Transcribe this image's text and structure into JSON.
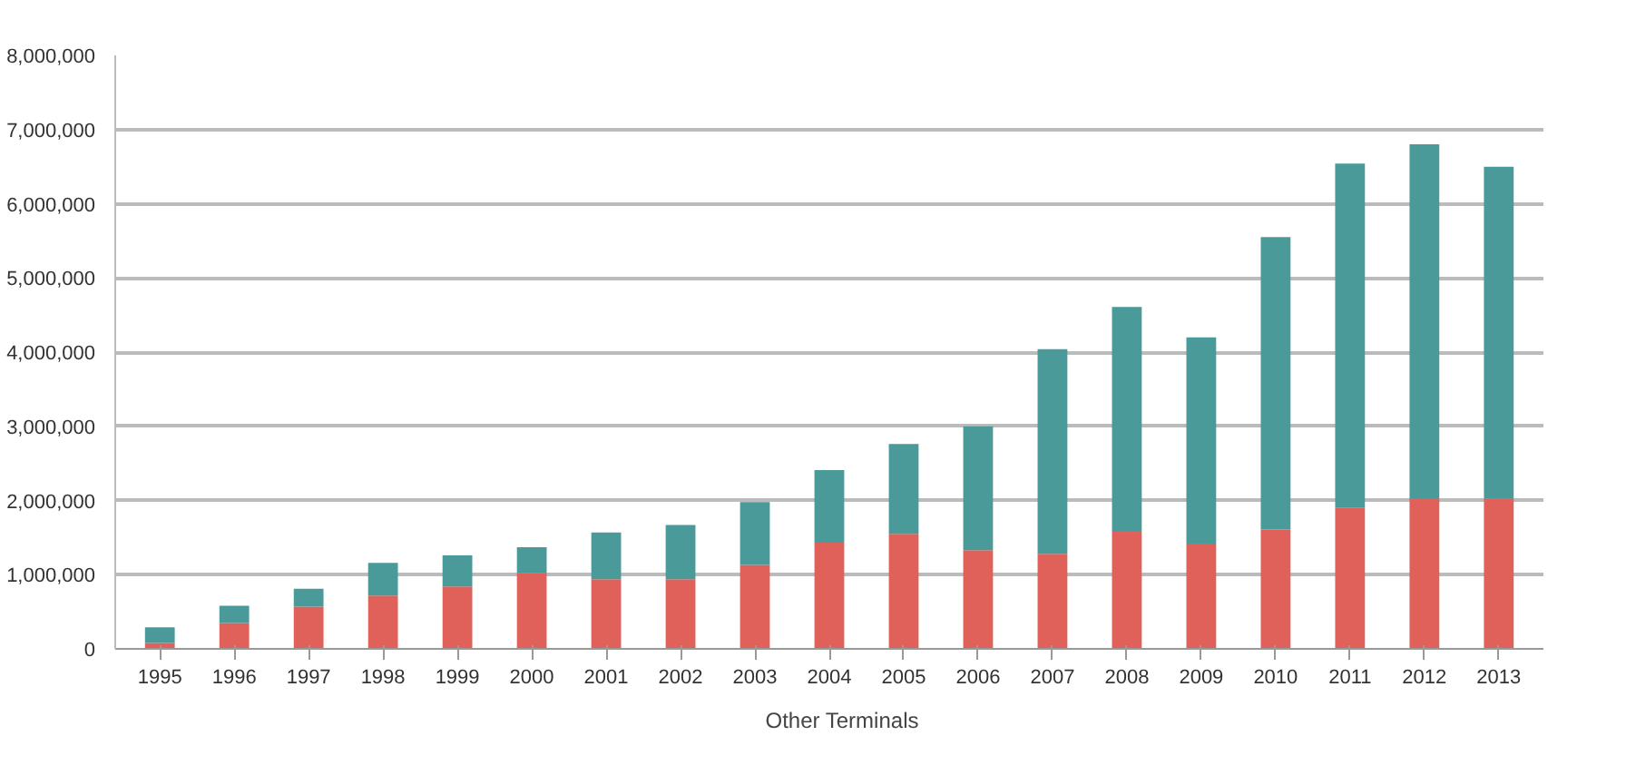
{
  "chart_data": {
    "type": "bar",
    "stacked": true,
    "categories": [
      "1995",
      "1996",
      "1997",
      "1998",
      "1999",
      "2000",
      "2001",
      "2002",
      "2003",
      "2004",
      "2005",
      "2006",
      "2007",
      "2008",
      "2009",
      "2010",
      "2011",
      "2012",
      "2013"
    ],
    "series": [
      {
        "color": "#e0605a",
        "values": [
          80000,
          350000,
          570000,
          720000,
          840000,
          1020000,
          940000,
          940000,
          1130000,
          1430000,
          1550000,
          1330000,
          1280000,
          1590000,
          1420000,
          1610000,
          1900000,
          2030000,
          2020000
        ]
      },
      {
        "name": "Other Terminals",
        "color": "#4a9a9a",
        "values": [
          210000,
          230000,
          240000,
          440000,
          420000,
          350000,
          630000,
          730000,
          850000,
          980000,
          1210000,
          1670000,
          2760000,
          3020000,
          2780000,
          3940000,
          4640000,
          4770000,
          4480000
        ]
      }
    ],
    "ylim": [
      0,
      8000000
    ],
    "yticks": [
      {
        "value": 0,
        "label": "0"
      },
      {
        "value": 1000000,
        "label": "1,000,000"
      },
      {
        "value": 2000000,
        "label": "2,000,000"
      },
      {
        "value": 3000000,
        "label": "3,000,000"
      },
      {
        "value": 4000000,
        "label": "4,000,000"
      },
      {
        "value": 5000000,
        "label": "5,000,000"
      },
      {
        "value": 6000000,
        "label": "6,000,000"
      },
      {
        "value": 7000000,
        "label": "7,000,000"
      },
      {
        "value": 8000000,
        "label": "8,000,000"
      }
    ],
    "grid": "y",
    "legend": "bottom"
  }
}
